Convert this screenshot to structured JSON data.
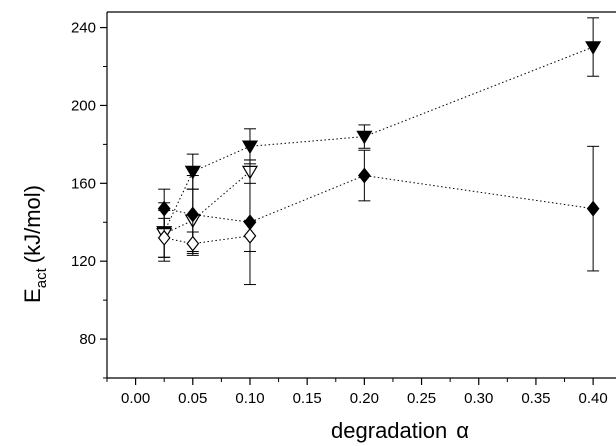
{
  "chart_data": {
    "type": "scatter",
    "xlabel": "degradation",
    "xlabel_symbol": "α",
    "ylabel_main": "E",
    "ylabel_sub": "act",
    "ylabel_unit": "(kJ/mol)",
    "xlim": [
      -0.025,
      0.42
    ],
    "ylim": [
      60,
      248
    ],
    "x_ticks": [
      "0.00",
      "0.05",
      "0.10",
      "0.15",
      "0.20",
      "0.25",
      "0.30",
      "0.35",
      "0.40"
    ],
    "y_ticks": [
      "80",
      "120",
      "160",
      "200",
      "240"
    ],
    "line_style": "dotted",
    "grid": false,
    "series": [
      {
        "marker": "filled-triangle-down",
        "x": [
          0.025,
          0.05,
          0.1,
          0.2,
          0.4
        ],
        "y": [
          135,
          166,
          179,
          184,
          230
        ],
        "err": [
          15,
          9,
          9,
          6,
          15
        ]
      },
      {
        "marker": "open-triangle-down",
        "x": [
          0.025,
          0.05,
          0.1
        ],
        "y": [
          134,
          141,
          166
        ],
        "err": [
          12,
          16,
          6
        ]
      },
      {
        "marker": "filled-diamond",
        "x": [
          0.025,
          0.05,
          0.1,
          0.2,
          0.4
        ],
        "y": [
          147,
          144,
          140,
          164,
          147
        ],
        "err": [
          10,
          20,
          32,
          13,
          32
        ]
      },
      {
        "marker": "open-diamond",
        "x": [
          0.025,
          0.05,
          0.1
        ],
        "y": [
          132,
          129,
          133
        ],
        "err": [
          10,
          6,
          8
        ]
      }
    ]
  }
}
